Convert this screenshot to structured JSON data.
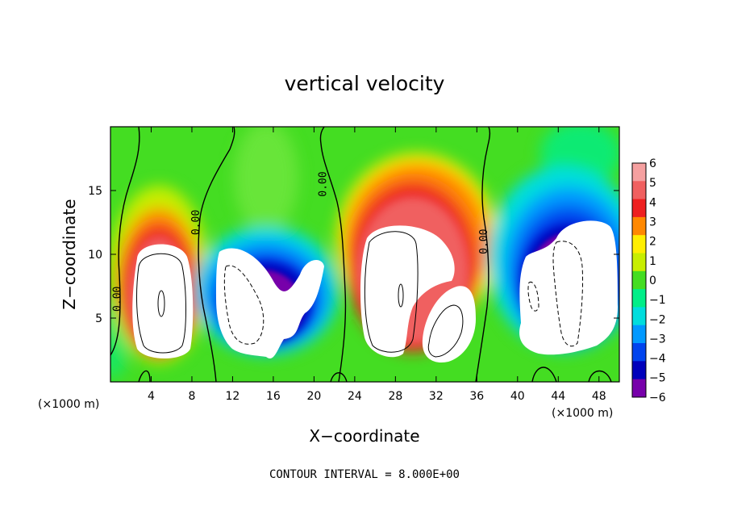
{
  "chart_data": {
    "type": "heatmap",
    "title": "vertical velocity",
    "xlabel": "X−coordinate",
    "ylabel": "Z−coordinate",
    "x_unit_left": "(×1000 m)",
    "x_unit_right": "(×1000 m)",
    "xlim": [
      0,
      50
    ],
    "ylim": [
      0,
      20
    ],
    "x_ticks": [
      4,
      8,
      12,
      16,
      20,
      24,
      28,
      32,
      36,
      40,
      44,
      48
    ],
    "y_ticks": [
      5,
      10,
      15
    ],
    "colorbar": {
      "levels": [
        6,
        5,
        4,
        3,
        2,
        1,
        0,
        -1,
        -2,
        -3,
        -4,
        -5,
        -6
      ],
      "labels": [
        "6",
        "5",
        "4",
        "3",
        "2",
        "1",
        "0",
        "−1",
        "−2",
        "−3",
        "−4",
        "−5",
        "−6"
      ],
      "colors": [
        "#f5a0a0",
        "#f06060",
        "#ee2020",
        "#ff8800",
        "#ffee00",
        "#c8ee00",
        "#44dd22",
        "#00ee88",
        "#00dddd",
        "#0099ff",
        "#0044ee",
        "#0000bb",
        "#7700aa"
      ],
      "position": "right"
    },
    "contour_labels": [
      {
        "text": "0.00",
        "x": 1.0,
        "z": 6.5,
        "rot": -90
      },
      {
        "text": "0.00",
        "x": 8.7,
        "z": 12.5,
        "rot": -90
      },
      {
        "text": "0.00",
        "x": 21.2,
        "z": 15.5,
        "rot": -90
      },
      {
        "text": "0.00",
        "x": 37.0,
        "z": 11.0,
        "rot": -90
      }
    ],
    "annotation": "CONTOUR INTERVAL = 8.000E+00"
  }
}
